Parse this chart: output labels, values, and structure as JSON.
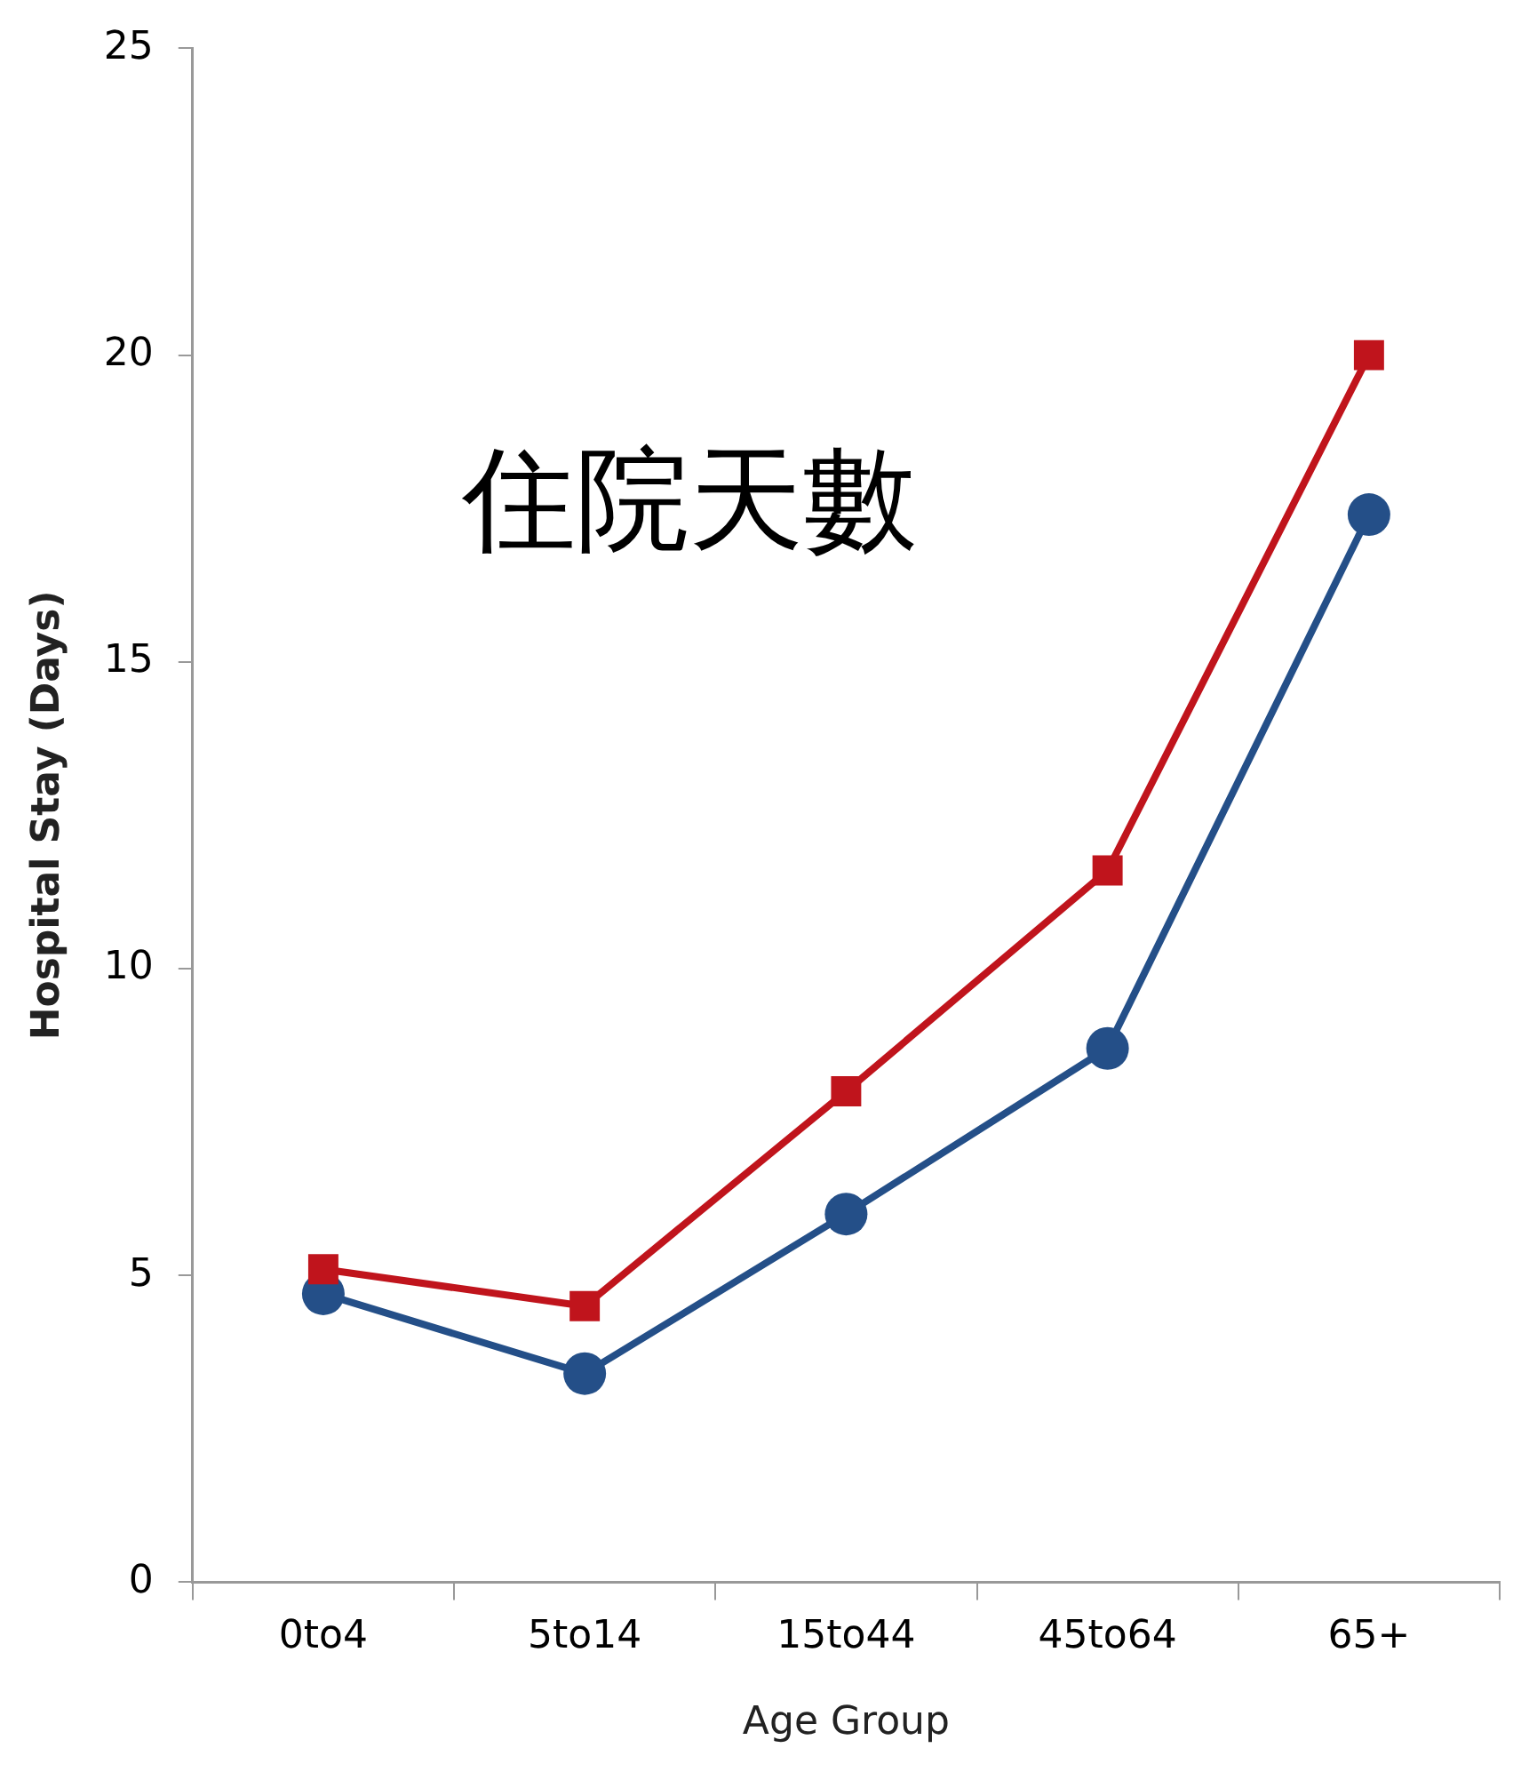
{
  "chart_data": {
    "type": "line",
    "xlabel": "Age Group",
    "ylabel": "Hospital Stay (Days)",
    "annotations": [
      "住院天數"
    ],
    "categories": [
      "0to4",
      "5to14",
      "15to44",
      "45to64",
      "65+"
    ],
    "series": [
      {
        "color": "#c0141c",
        "marker": "square",
        "values": [
          5.1,
          4.5,
          8.0,
          11.6,
          20.0
        ]
      },
      {
        "color": "#244f88",
        "marker": "circle",
        "values": [
          4.7,
          3.4,
          6.0,
          8.7,
          17.4
        ]
      }
    ],
    "ylim": [
      0,
      25
    ],
    "yticks": [
      0,
      5,
      10,
      15,
      20,
      25
    ],
    "grid": false,
    "legend": false
  }
}
